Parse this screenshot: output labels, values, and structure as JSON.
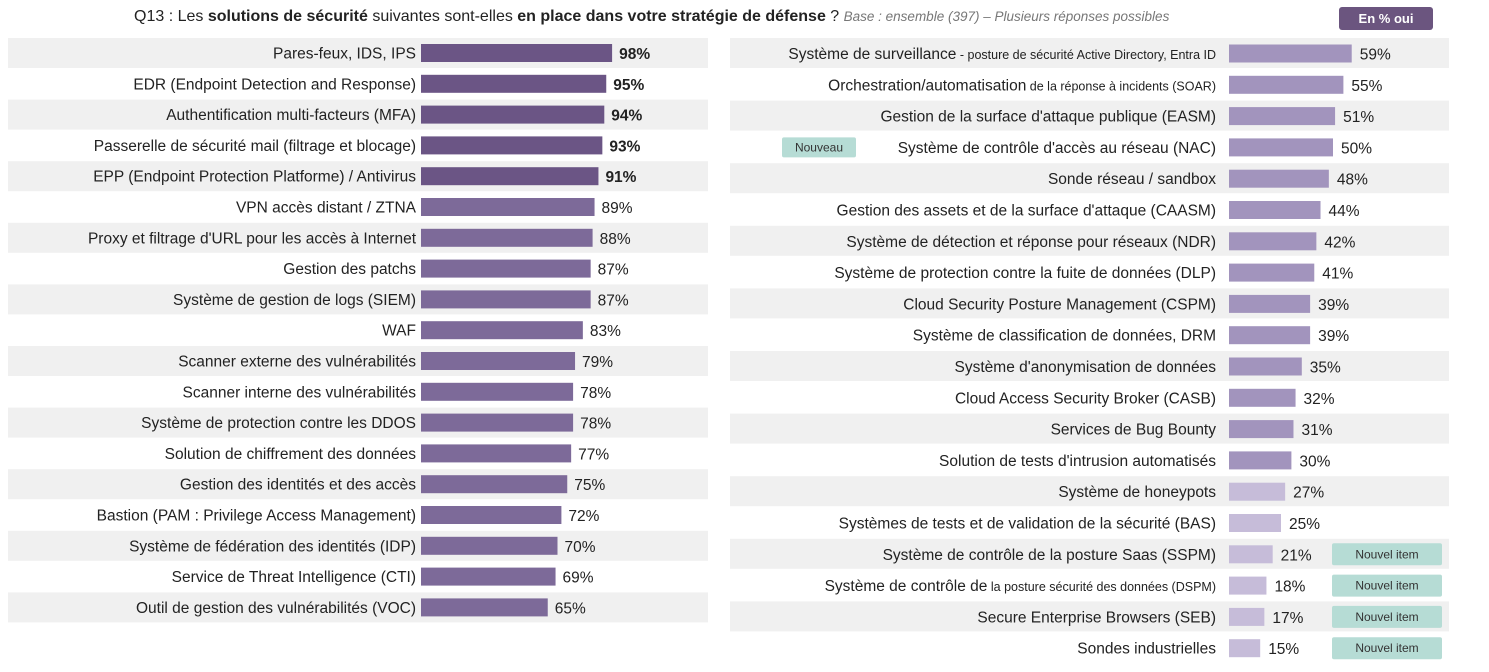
{
  "header": {
    "q_prefix": "Q13 : Les ",
    "q_bold1": "solutions de sécurité",
    "q_mid": " suivantes sont-elles ",
    "q_bold2": "en place dans votre stratégie de défense",
    "q_end": " ? ",
    "base": "Base : ensemble (397) – Plusieurs réponses possibles",
    "badge": "En % oui"
  },
  "colors": {
    "bar_dark": "#6b5585",
    "bar_mid": "#7d6a99",
    "bar_right": "#a294bd",
    "bar_light": "#c6bcd9",
    "row_bg": "#f0f0f0",
    "tag_bg": "#b6dcd5"
  },
  "chart_data": [
    {
      "type": "bar",
      "orientation": "horizontal",
      "unit": "%",
      "title": "",
      "categories": [
        "Pares-feux, IDS, IPS",
        "EDR (Endpoint Detection and Response)",
        "Authentification multi-facteurs (MFA)",
        "Passerelle de sécurité mail (filtrage et blocage)",
        "EPP (Endpoint Protection Platforme) / Antivirus",
        "VPN accès distant / ZTNA",
        "Proxy et filtrage d'URL pour les accès à Internet",
        "Gestion des patchs",
        "Système de gestion de logs (SIEM)",
        "WAF",
        "Scanner externe des vulnérabilités",
        "Scanner interne des vulnérabilités",
        "Système de protection contre les DDOS",
        "Solution de chiffrement des données",
        "Gestion des identités et des accès",
        "Bastion (PAM : Privilege Access Management)",
        "Système de fédération des identités (IDP)",
        "Service de Threat Intelligence (CTI)",
        "Outil de gestion des vulnérabilités (VOC)"
      ],
      "values": [
        98,
        95,
        94,
        93,
        91,
        89,
        88,
        87,
        87,
        83,
        79,
        78,
        78,
        77,
        75,
        72,
        70,
        69,
        65
      ],
      "value_labels": [
        "98%",
        "95%",
        "94%",
        "93%",
        "91%",
        "89%",
        "88%",
        "87%",
        "87%",
        "83%",
        "79%",
        "78%",
        "78%",
        "77%",
        "75%",
        "72%",
        "70%",
        "69%",
        "65%"
      ],
      "bold": [
        true,
        true,
        true,
        true,
        true,
        false,
        false,
        false,
        false,
        false,
        false,
        false,
        false,
        false,
        false,
        false,
        false,
        false,
        false
      ],
      "xlim": [
        0,
        100
      ]
    },
    {
      "type": "bar",
      "orientation": "horizontal",
      "unit": "%",
      "title": "",
      "categories": [
        {
          "main": "Système de surveillance",
          "small": " - posture de sécurité Active Directory, Entra ID"
        },
        {
          "main": "Orchestration/automatisation",
          "small": " de la réponse à incidents (SOAR)"
        },
        {
          "main": "Gestion de la surface d'attaque publique (EASM)",
          "small": ""
        },
        {
          "main": "Système de contrôle d'accès au réseau (NAC)",
          "small": ""
        },
        {
          "main": "Sonde réseau / sandbox",
          "small": ""
        },
        {
          "main": "Gestion des assets et de la surface d'attaque (CAASM)",
          "small": ""
        },
        {
          "main": "Système de détection et réponse pour réseaux (NDR)",
          "small": ""
        },
        {
          "main": "Système de protection contre la fuite de données (DLP)",
          "small": ""
        },
        {
          "main": "Cloud Security Posture Management (CSPM)",
          "small": ""
        },
        {
          "main": "Système de classification de données, DRM",
          "small": ""
        },
        {
          "main": "Système d'anonymisation de données",
          "small": ""
        },
        {
          "main": "Cloud Access Security Broker (CASB)",
          "small": ""
        },
        {
          "main": "Services de Bug Bounty",
          "small": ""
        },
        {
          "main": "Solution de tests d'intrusion automatisés",
          "small": ""
        },
        {
          "main": "Système de honeypots",
          "small": ""
        },
        {
          "main": "Systèmes de tests et de validation de la sécurité (BAS)",
          "small": ""
        },
        {
          "main": "Système de contrôle de la posture Saas (SSPM)",
          "small": ""
        },
        {
          "main": "Système de contrôle de",
          "small": " la posture sécurité des données (DSPM)"
        },
        {
          "main": "Secure Enterprise Browsers (SEB)",
          "small": ""
        },
        {
          "main": "Sondes industrielles",
          "small": ""
        }
      ],
      "values": [
        59,
        55,
        51,
        50,
        48,
        44,
        42,
        41,
        39,
        39,
        35,
        32,
        31,
        30,
        27,
        25,
        21,
        18,
        17,
        15
      ],
      "value_labels": [
        "59%",
        "55%",
        "51%",
        "50%",
        "48%",
        "44%",
        "42%",
        "41%",
        "39%",
        "39%",
        "35%",
        "32%",
        "31%",
        "30%",
        "27%",
        "25%",
        "21%",
        "18%",
        "17%",
        "15%"
      ],
      "light": [
        false,
        false,
        false,
        false,
        false,
        false,
        false,
        false,
        false,
        false,
        false,
        false,
        false,
        false,
        true,
        true,
        true,
        true,
        true,
        true
      ],
      "tag_left": [
        "",
        "",
        "",
        "Nouveau",
        "",
        "",
        "",
        "",
        "",
        "",
        "",
        "",
        "",
        "",
        "",
        "",
        "",
        "",
        "",
        ""
      ],
      "tag_right": [
        "",
        "",
        "",
        "",
        "",
        "",
        "",
        "",
        "",
        "",
        "",
        "",
        "",
        "",
        "",
        "",
        "Nouvel item",
        "Nouvel item",
        "Nouvel item",
        "Nouvel item"
      ],
      "xlim": [
        0,
        100
      ]
    }
  ]
}
